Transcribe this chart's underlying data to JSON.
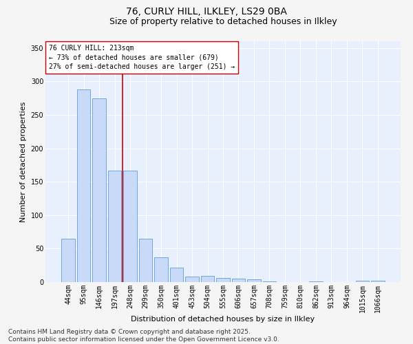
{
  "title1": "76, CURLY HILL, ILKLEY, LS29 0BA",
  "title2": "Size of property relative to detached houses in Ilkley",
  "xlabel": "Distribution of detached houses by size in Ilkley",
  "ylabel": "Number of detached properties",
  "categories": [
    "44sqm",
    "95sqm",
    "146sqm",
    "197sqm",
    "248sqm",
    "299sqm",
    "350sqm",
    "401sqm",
    "453sqm",
    "504sqm",
    "555sqm",
    "606sqm",
    "657sqm",
    "708sqm",
    "759sqm",
    "810sqm",
    "862sqm",
    "913sqm",
    "964sqm",
    "1015sqm",
    "1066sqm"
  ],
  "values": [
    65,
    288,
    275,
    167,
    167,
    65,
    37,
    22,
    8,
    9,
    6,
    5,
    4,
    1,
    0,
    0,
    1,
    0,
    0,
    2,
    2
  ],
  "bar_color": "#c9daf8",
  "bar_edge_color": "#6fa8dc",
  "vline_color": "#cc0000",
  "vline_pos": 3.5,
  "annotation_text": "76 CURLY HILL: 213sqm\n← 73% of detached houses are smaller (679)\n27% of semi-detached houses are larger (251) →",
  "annotation_box_color": "#ffffff",
  "annotation_box_edge_color": "#cc0000",
  "ylim": [
    0,
    360
  ],
  "yticks": [
    0,
    50,
    100,
    150,
    200,
    250,
    300,
    350
  ],
  "bg_color": "#e8f0fd",
  "fig_bg_color": "#f5f5f5",
  "grid_color": "#ffffff",
  "footer": "Contains HM Land Registry data © Crown copyright and database right 2025.\nContains public sector information licensed under the Open Government Licence v3.0.",
  "title_fontsize": 10,
  "subtitle_fontsize": 9,
  "axis_label_fontsize": 8,
  "tick_fontsize": 7,
  "annotation_fontsize": 7,
  "footer_fontsize": 6.5
}
